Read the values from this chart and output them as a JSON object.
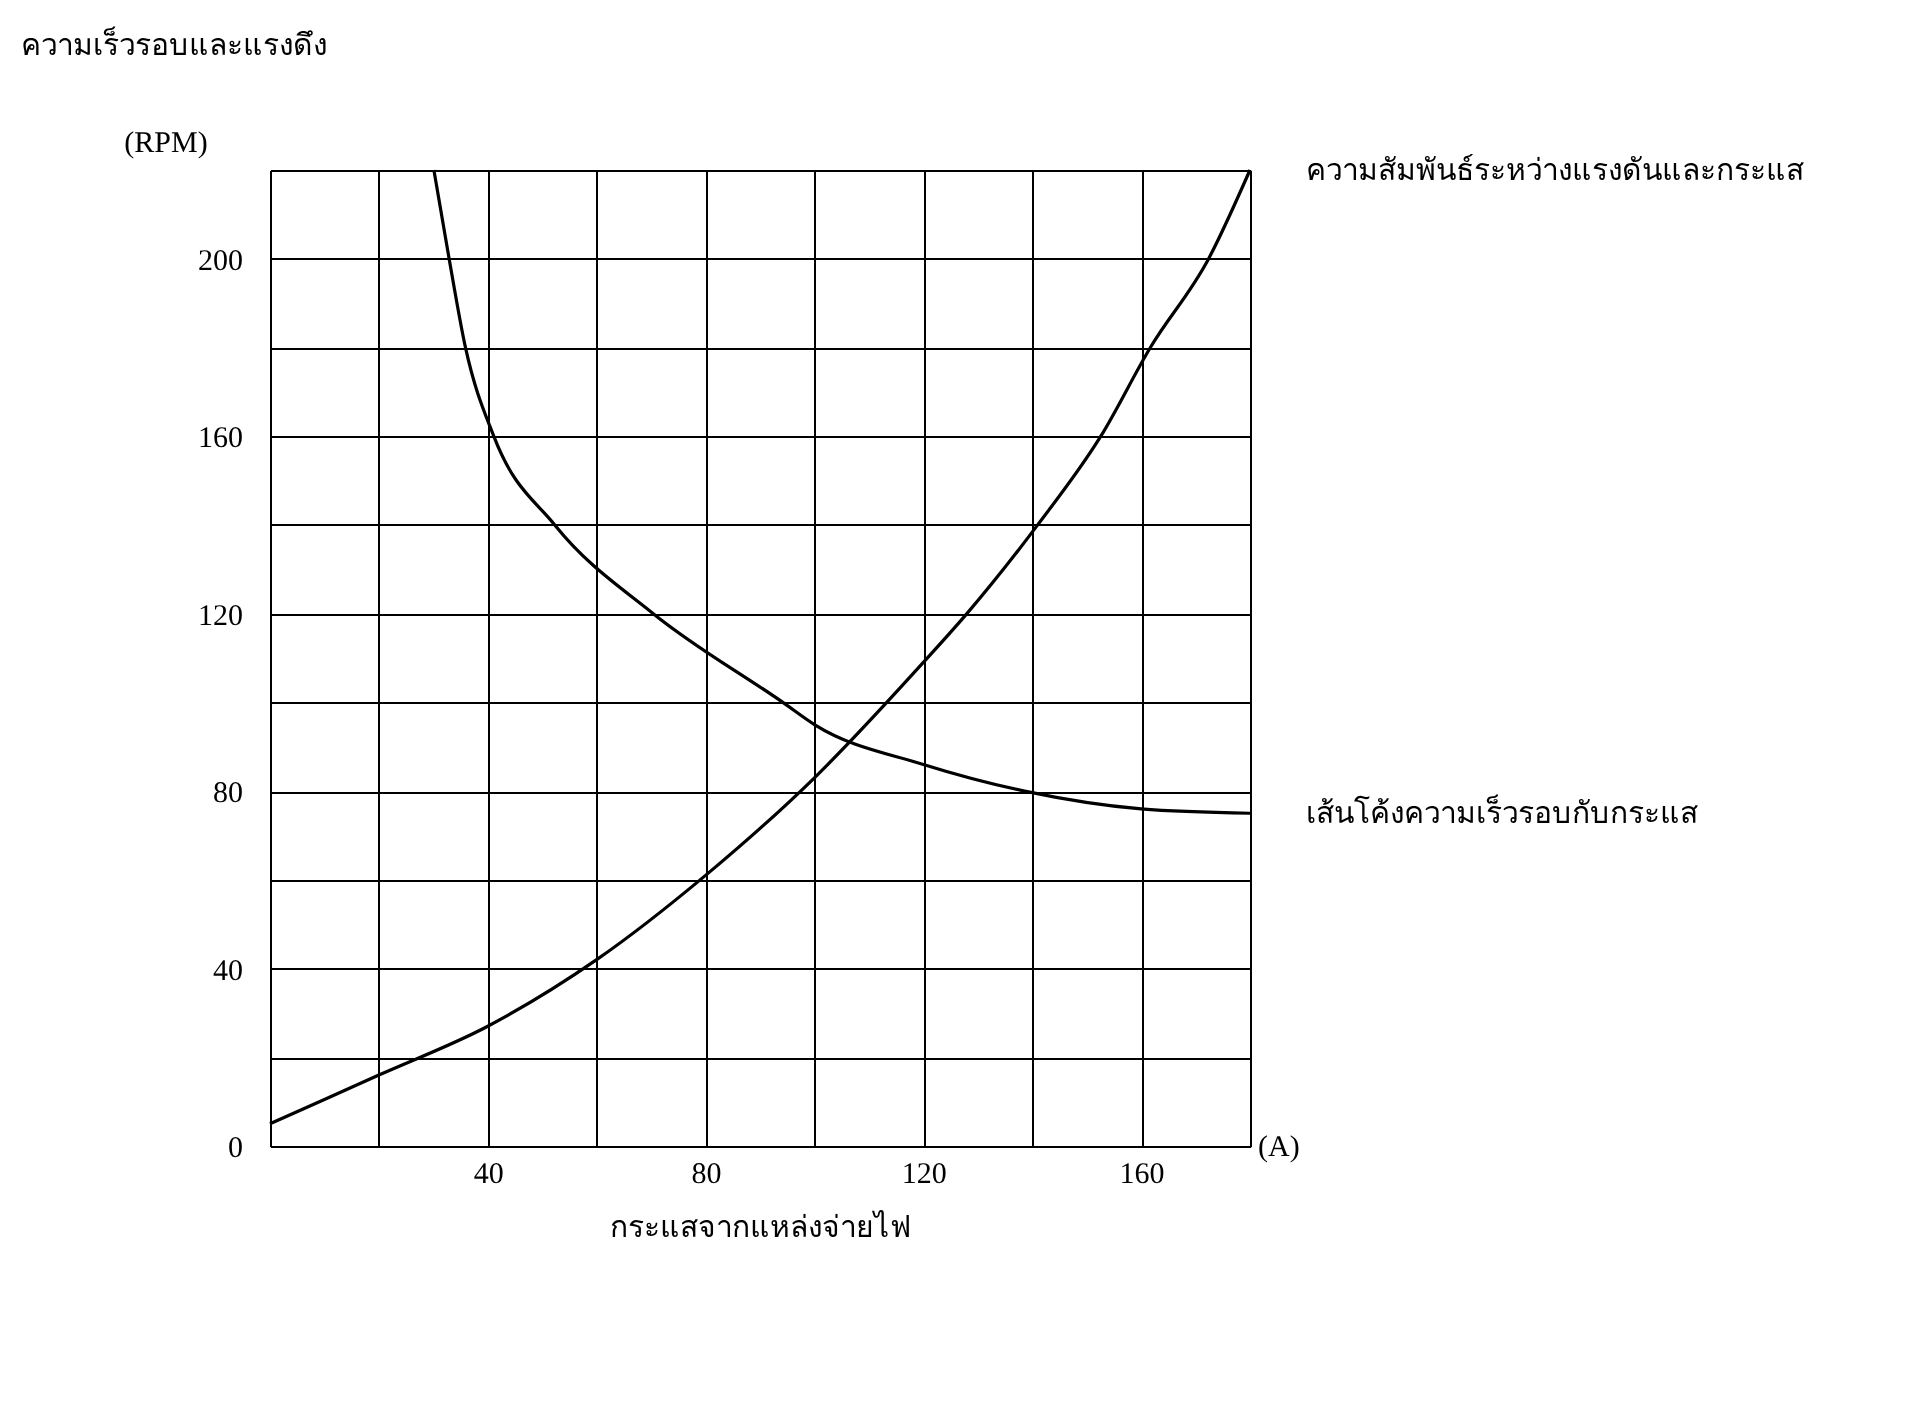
{
  "chart_data": {
    "type": "line",
    "ylabel": "ความเร็วรอบและแรงดึง",
    "xlabel": "กระแสจากแหล่งจ่ายไฟ",
    "annotations": [
      "(RPM)",
      "(A)"
    ],
    "series": [
      {
        "name": "ความสัมพันธ์ระหว่างแรงดันและกระแส",
        "color": "#000000",
        "x": [
          0,
          20,
          40,
          60,
          80,
          100,
          120,
          128,
          141,
          152.6,
          161.7,
          172.4,
          180
        ],
        "values": [
          5,
          16,
          27,
          42,
          61,
          83,
          109,
          120,
          140,
          160,
          180,
          200,
          220
        ]
      },
      {
        "name": "เส้นโค้งความเร็วรอบกับกระแส",
        "color": "#000000",
        "x": [
          30.1,
          32.9,
          35.9,
          41.1,
          52.3,
          70.4,
          94.2,
          100,
          120,
          138.6,
          160,
          180
        ],
        "values": [
          220,
          200,
          180,
          160,
          140,
          120,
          100,
          95,
          86,
          80,
          76,
          75
        ]
      }
    ],
    "xlim": [
      0,
      180
    ],
    "ylim": [
      0,
      220
    ],
    "xticks": [
      {
        "value": 0,
        "label": null
      },
      {
        "value": 20,
        "label": null
      },
      40,
      {
        "value": 60,
        "label": null
      },
      80,
      {
        "value": 100,
        "label": null
      },
      120,
      {
        "value": 140,
        "label": null
      },
      160,
      {
        "value": 180,
        "label": null
      }
    ],
    "yticks": [
      0,
      {
        "value": 20,
        "label": null
      },
      40,
      {
        "value": 60,
        "label": null
      },
      80,
      {
        "value": 100,
        "label": null
      },
      120,
      {
        "value": 140,
        "label": null
      },
      160,
      {
        "value": 180,
        "label": null
      },
      200,
      {
        "value": 220,
        "label": null
      }
    ],
    "grid": true,
    "line_style": "solid",
    "marker": "none"
  }
}
